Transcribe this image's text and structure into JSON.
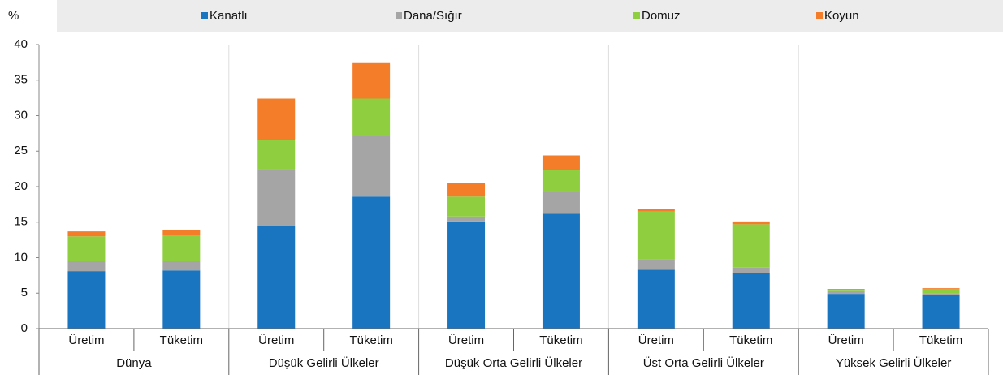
{
  "chart_data": {
    "type": "stacked_bar",
    "ylabel": "%",
    "categories": [
      "Üretim",
      "Tüketim",
      "Üretim",
      "Tüketim",
      "Üretim",
      "Tüketim",
      "Üretim",
      "Tüketim",
      "Üretim",
      "Tüketim"
    ],
    "groups": [
      "Dünya",
      "Düşük Gelirli Ülkeler",
      "Düşük Orta Gelirli Ülkeler",
      "Üst Orta Gelirli Ülkeler",
      "Yüksek Gelirli Ülkeler"
    ],
    "series": [
      {
        "name": "Kanatlı",
        "color": "#1a75c1",
        "values": [
          8.1,
          8.2,
          14.5,
          18.6,
          15.1,
          16.2,
          8.3,
          7.8,
          4.9,
          4.7
        ]
      },
      {
        "name": "Dana/Sığır",
        "color": "#a5a5a5",
        "values": [
          1.4,
          1.3,
          8.0,
          8.5,
          0.7,
          3.1,
          1.5,
          0.8,
          0.5,
          0.3
        ]
      },
      {
        "name": "Domuz",
        "color": "#8fce3e",
        "values": [
          3.5,
          3.7,
          4.1,
          5.3,
          2.8,
          3.0,
          6.7,
          6.1,
          0.1,
          0.6
        ]
      },
      {
        "name": "Koyun",
        "color": "#f47d2a",
        "values": [
          0.7,
          0.7,
          5.8,
          5.0,
          1.9,
          2.1,
          0.4,
          0.4,
          0.1,
          0.1
        ]
      }
    ],
    "ylim": [
      0,
      40
    ],
    "yticks": [
      0,
      5,
      10,
      15,
      20,
      25,
      30,
      35,
      40
    ],
    "legend": "top"
  }
}
